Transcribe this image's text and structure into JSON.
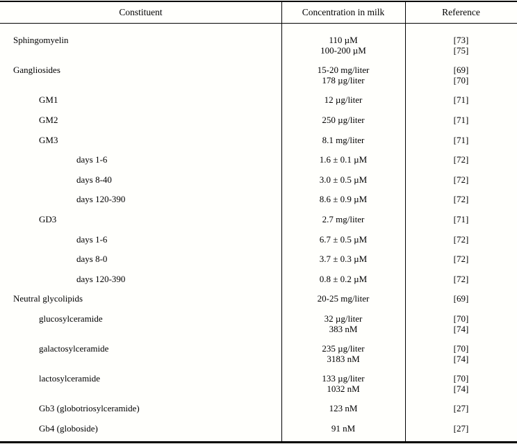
{
  "table": {
    "columns": [
      {
        "label": "Constituent"
      },
      {
        "label": "Concentration in milk"
      },
      {
        "label": "Reference"
      }
    ],
    "rows": [
      {
        "constituent": "Sphingomyelin",
        "indent": 0,
        "values": [
          "110 µM",
          "100-200 µM"
        ],
        "refs": [
          "[73]",
          "[75]"
        ]
      },
      {
        "constituent": "Gangliosides",
        "indent": 0,
        "values": [
          "15-20 mg/liter",
          "178 µg/liter"
        ],
        "refs": [
          "[69]",
          "[70]"
        ]
      },
      {
        "constituent": "GM1",
        "indent": 1,
        "values": [
          "12 µg/liter"
        ],
        "refs": [
          "[71]"
        ]
      },
      {
        "constituent": "GM2",
        "indent": 1,
        "values": [
          "250 µg/liter"
        ],
        "refs": [
          "[71]"
        ]
      },
      {
        "constituent": "GM3",
        "indent": 1,
        "values": [
          "8.1 mg/liter"
        ],
        "refs": [
          "[71]"
        ]
      },
      {
        "constituent": "days 1-6",
        "indent": 2,
        "values": [
          "1.6 ± 0.1 µM"
        ],
        "refs": [
          "[72]"
        ]
      },
      {
        "constituent": "days 8-40",
        "indent": 2,
        "values": [
          "3.0 ± 0.5 µM"
        ],
        "refs": [
          "[72]"
        ]
      },
      {
        "constituent": "days 120-390",
        "indent": 2,
        "values": [
          "8.6 ± 0.9 µM"
        ],
        "refs": [
          "[72]"
        ]
      },
      {
        "constituent": "GD3",
        "indent": 1,
        "values": [
          "2.7 mg/liter"
        ],
        "refs": [
          "[71]"
        ]
      },
      {
        "constituent": "days 1-6",
        "indent": 2,
        "values": [
          "6.7 ± 0.5 µM"
        ],
        "refs": [
          "[72]"
        ]
      },
      {
        "constituent": "days 8-0",
        "indent": 2,
        "values": [
          "3.7 ± 0.3 µM"
        ],
        "refs": [
          "[72]"
        ]
      },
      {
        "constituent": "days 120-390",
        "indent": 2,
        "values": [
          "0.8 ± 0.2 µM"
        ],
        "refs": [
          "[72]"
        ]
      },
      {
        "constituent": "Neutral glycolipids",
        "indent": 0,
        "values": [
          "20-25 mg/liter"
        ],
        "refs": [
          "[69]"
        ]
      },
      {
        "constituent": "glucosylceramide",
        "indent": 1,
        "values": [
          "32 µg/liter",
          "383 nM"
        ],
        "refs": [
          "[70]",
          "[74]"
        ]
      },
      {
        "constituent": "galactosylceramide",
        "indent": 1,
        "values": [
          "235 µg/liter",
          "3183 nM"
        ],
        "refs": [
          "[70]",
          "[74]"
        ]
      },
      {
        "constituent": "lactosylceramide",
        "indent": 1,
        "values": [
          "133 µg/liter",
          "1032 nM"
        ],
        "refs": [
          "[70]",
          "[74]"
        ]
      },
      {
        "constituent": "Gb3 (globotriosylceramide)",
        "indent": 1,
        "values": [
          "123 nM"
        ],
        "refs": [
          "[27]"
        ]
      },
      {
        "constituent": "Gb4 (globoside)",
        "indent": 1,
        "values": [
          "91 nM"
        ],
        "refs": [
          "[27]"
        ]
      }
    ]
  }
}
